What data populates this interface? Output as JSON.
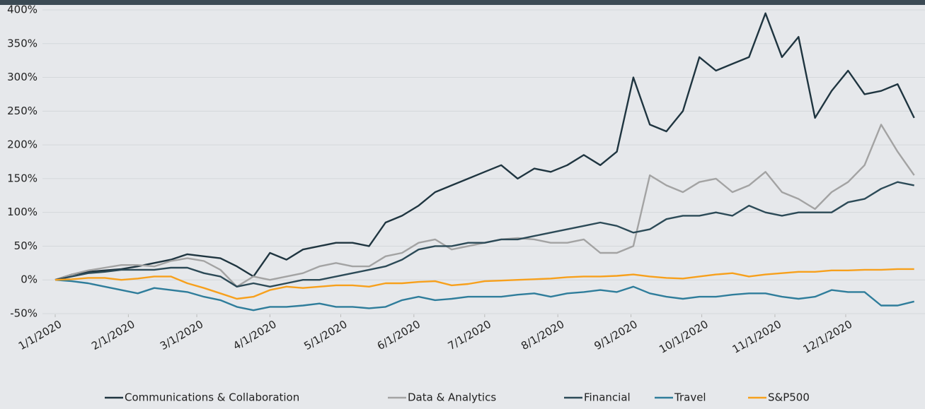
{
  "chart_data": {
    "type": "line",
    "x": [
      "1/1/2020",
      "1/8/2020",
      "1/15/2020",
      "1/22/2020",
      "1/29/2020",
      "2/5/2020",
      "2/12/2020",
      "2/19/2020",
      "2/26/2020",
      "3/4/2020",
      "3/11/2020",
      "3/18/2020",
      "3/25/2020",
      "4/1/2020",
      "4/8/2020",
      "4/15/2020",
      "4/22/2020",
      "4/29/2020",
      "5/6/2020",
      "5/13/2020",
      "5/20/2020",
      "5/27/2020",
      "6/3/2020",
      "6/10/2020",
      "6/17/2020",
      "6/24/2020",
      "7/1/2020",
      "7/8/2020",
      "7/15/2020",
      "7/22/2020",
      "7/29/2020",
      "8/5/2020",
      "8/12/2020",
      "8/19/2020",
      "8/26/2020",
      "9/2/2020",
      "9/9/2020",
      "9/16/2020",
      "9/23/2020",
      "9/30/2020",
      "10/7/2020",
      "10/14/2020",
      "10/21/2020",
      "10/28/2020",
      "11/4/2020",
      "11/11/2020",
      "11/18/2020",
      "11/25/2020",
      "12/2/2020",
      "12/9/2020",
      "12/16/2020",
      "12/23/2020",
      "12/30/2020"
    ],
    "xlim": [
      "1/1/2020",
      "12/31/2020"
    ],
    "xticks": [
      "1/1/2020",
      "2/1/2020",
      "3/1/2020",
      "4/1/2020",
      "5/1/2020",
      "6/1/2020",
      "7/1/2020",
      "8/1/2020",
      "9/1/2020",
      "10/1/2020",
      "11/1/2020",
      "12/1/2020"
    ],
    "ylim": [
      -50,
      400
    ],
    "yticks": [
      {
        "value": -50,
        "label": "-50%"
      },
      {
        "value": 0,
        "label": "0%"
      },
      {
        "value": 50,
        "label": "50%"
      },
      {
        "value": 100,
        "label": "100%"
      },
      {
        "value": 150,
        "label": "150%"
      },
      {
        "value": 200,
        "label": "200%"
      },
      {
        "value": 250,
        "label": "250%"
      },
      {
        "value": 300,
        "label": "300%"
      },
      {
        "value": 350,
        "label": "350%"
      },
      {
        "value": 400,
        "label": "400%"
      }
    ],
    "grid": true,
    "legend": "bottom",
    "series": [
      {
        "name": "Communications & Collaboration",
        "color": "#1f3540",
        "values": [
          0,
          8,
          12,
          14,
          16,
          20,
          25,
          30,
          38,
          35,
          32,
          20,
          5,
          40,
          30,
          45,
          50,
          55,
          55,
          50,
          85,
          95,
          110,
          130,
          140,
          150,
          160,
          170,
          150,
          165,
          160,
          170,
          185,
          170,
          190,
          300,
          230,
          220,
          250,
          330,
          310,
          320,
          330,
          395,
          330,
          360,
          240,
          280,
          310,
          275,
          280,
          290,
          240
        ]
      },
      {
        "name": "Data & Analytics",
        "color": "#a3a3a3",
        "values": [
          0,
          8,
          14,
          18,
          22,
          22,
          20,
          28,
          32,
          28,
          15,
          -10,
          5,
          0,
          5,
          10,
          20,
          25,
          20,
          20,
          35,
          40,
          55,
          60,
          45,
          50,
          55,
          60,
          62,
          60,
          55,
          55,
          60,
          40,
          40,
          50,
          155,
          140,
          130,
          145,
          150,
          130,
          140,
          160,
          130,
          120,
          105,
          130,
          145,
          170,
          230,
          190,
          155
        ]
      },
      {
        "name": "Financial",
        "color": "#2c4a57",
        "values": [
          0,
          5,
          10,
          12,
          15,
          15,
          15,
          18,
          18,
          10,
          5,
          -10,
          -5,
          -10,
          -5,
          0,
          0,
          5,
          10,
          15,
          20,
          30,
          45,
          50,
          50,
          55,
          55,
          60,
          60,
          65,
          70,
          75,
          80,
          85,
          80,
          70,
          75,
          90,
          95,
          95,
          100,
          95,
          110,
          100,
          95,
          100,
          100,
          100,
          115,
          120,
          135,
          145,
          140
        ]
      },
      {
        "name": "Travel",
        "color": "#2f7d9b",
        "values": [
          0,
          -2,
          -5,
          -10,
          -15,
          -20,
          -12,
          -15,
          -18,
          -25,
          -30,
          -40,
          -45,
          -40,
          -40,
          -38,
          -35,
          -40,
          -40,
          -42,
          -40,
          -30,
          -25,
          -30,
          -28,
          -25,
          -25,
          -25,
          -22,
          -20,
          -25,
          -20,
          -18,
          -15,
          -18,
          -10,
          -20,
          -25,
          -28,
          -25,
          -25,
          -22,
          -20,
          -20,
          -25,
          -28,
          -25,
          -15,
          -18,
          -18,
          -38,
          -38,
          -32
        ]
      },
      {
        "name": "S&P500",
        "color": "#f7a01c",
        "values": [
          0,
          1,
          3,
          3,
          0,
          2,
          5,
          5,
          -5,
          -12,
          -20,
          -28,
          -25,
          -15,
          -10,
          -12,
          -10,
          -8,
          -8,
          -10,
          -5,
          -5,
          -3,
          -2,
          -8,
          -6,
          -2,
          -1,
          0,
          1,
          2,
          4,
          5,
          5,
          6,
          8,
          5,
          3,
          2,
          5,
          8,
          10,
          5,
          8,
          10,
          12,
          12,
          14,
          14,
          15,
          15,
          16,
          16
        ]
      }
    ]
  }
}
